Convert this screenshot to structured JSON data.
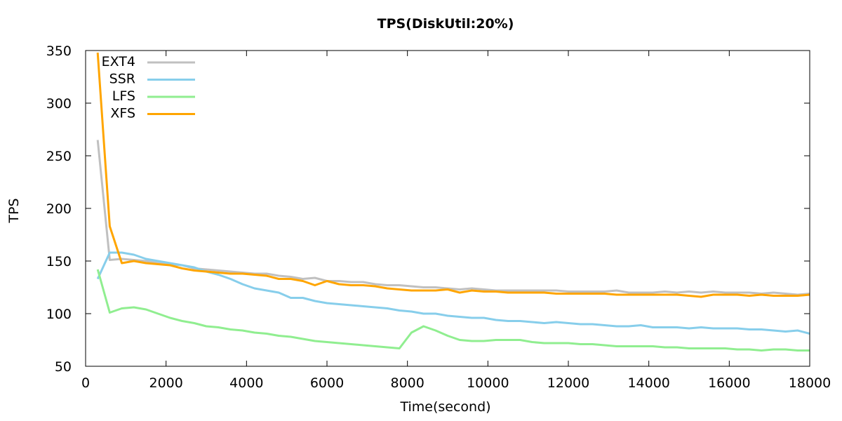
{
  "chart_data": {
    "type": "line",
    "title": "TPS(DiskUtil:20%)",
    "xlabel": "Time(second)",
    "ylabel": "TPS",
    "xlim": [
      0,
      18000
    ],
    "ylim": [
      50,
      350
    ],
    "x_ticks": [
      "0",
      "2000",
      "4000",
      "6000",
      "8000",
      "10000",
      "12000",
      "14000",
      "16000",
      "18000"
    ],
    "y_ticks": [
      "50",
      "100",
      "150",
      "200",
      "250",
      "300",
      "350"
    ],
    "grid": false,
    "legend_position": "top-left",
    "series": [
      {
        "name": "EXT4",
        "color": "#c0c0c0",
        "x": [
          300,
          600,
          900,
          1200,
          1500,
          1800,
          2100,
          2400,
          2700,
          3000,
          3300,
          3600,
          3900,
          4200,
          4500,
          4800,
          5100,
          5400,
          5700,
          6000,
          6300,
          6600,
          6900,
          7200,
          7500,
          7800,
          8100,
          8400,
          8700,
          9000,
          9300,
          9600,
          9900,
          10200,
          10500,
          10800,
          11100,
          11400,
          11700,
          12000,
          12300,
          12600,
          12900,
          13200,
          13500,
          13800,
          14100,
          14400,
          14700,
          15000,
          15300,
          15600,
          15900,
          16200,
          16500,
          16800,
          17100,
          17400,
          17700,
          18000
        ],
        "y": [
          265,
          151,
          152,
          151,
          150,
          148,
          147,
          146,
          143,
          142,
          141,
          140,
          139,
          138,
          138,
          136,
          135,
          133,
          134,
          131,
          131,
          130,
          130,
          128,
          127,
          127,
          126,
          125,
          125,
          124,
          123,
          124,
          123,
          122,
          122,
          122,
          122,
          122,
          122,
          121,
          121,
          121,
          121,
          122,
          120,
          120,
          120,
          121,
          120,
          121,
          120,
          121,
          120,
          120,
          120,
          119,
          120,
          119,
          118,
          119
        ]
      },
      {
        "name": "SSR",
        "color": "#87ceeb",
        "x": [
          300,
          600,
          900,
          1200,
          1500,
          1800,
          2100,
          2400,
          2700,
          3000,
          3300,
          3600,
          3900,
          4200,
          4500,
          4800,
          5100,
          5400,
          5700,
          6000,
          6300,
          6600,
          6900,
          7200,
          7500,
          7800,
          8100,
          8400,
          8700,
          9000,
          9300,
          9600,
          9900,
          10200,
          10500,
          10800,
          11100,
          11400,
          11700,
          12000,
          12300,
          12600,
          12900,
          13200,
          13500,
          13800,
          14100,
          14400,
          14700,
          15000,
          15300,
          15600,
          15900,
          16200,
          16500,
          16800,
          17100,
          17400,
          17700,
          18000
        ],
        "y": [
          133,
          158,
          158,
          156,
          152,
          150,
          148,
          146,
          144,
          140,
          137,
          133,
          128,
          124,
          122,
          120,
          115,
          115,
          112,
          110,
          109,
          108,
          107,
          106,
          105,
          103,
          102,
          100,
          100,
          98,
          97,
          96,
          96,
          94,
          93,
          93,
          92,
          91,
          92,
          91,
          90,
          90,
          89,
          88,
          88,
          89,
          87,
          87,
          87,
          86,
          87,
          86,
          86,
          86,
          85,
          85,
          84,
          83,
          84,
          81
        ]
      },
      {
        "name": "LFS",
        "color": "#90ee90",
        "x": [
          300,
          600,
          900,
          1200,
          1500,
          1800,
          2100,
          2400,
          2700,
          3000,
          3300,
          3600,
          3900,
          4200,
          4500,
          4800,
          5100,
          5400,
          5700,
          6000,
          6300,
          6600,
          6900,
          7200,
          7500,
          7800,
          8100,
          8400,
          8700,
          9000,
          9300,
          9600,
          9900,
          10200,
          10500,
          10800,
          11100,
          11400,
          11700,
          12000,
          12300,
          12600,
          12900,
          13200,
          13500,
          13800,
          14100,
          14400,
          14700,
          15000,
          15300,
          15600,
          15900,
          16200,
          16500,
          16800,
          17100,
          17400,
          17700,
          18000
        ],
        "y": [
          142,
          101,
          105,
          106,
          104,
          100,
          96,
          93,
          91,
          88,
          87,
          85,
          84,
          82,
          81,
          79,
          78,
          76,
          74,
          73,
          72,
          71,
          70,
          69,
          68,
          67,
          82,
          88,
          84,
          79,
          75,
          74,
          74,
          75,
          75,
          75,
          73,
          72,
          72,
          72,
          71,
          71,
          70,
          69,
          69,
          69,
          69,
          68,
          68,
          67,
          67,
          67,
          67,
          66,
          66,
          65,
          66,
          66,
          65,
          65
        ]
      },
      {
        "name": "XFS",
        "color": "#ffa500",
        "x": [
          300,
          600,
          900,
          1200,
          1500,
          1800,
          2100,
          2400,
          2700,
          3000,
          3300,
          3600,
          3900,
          4200,
          4500,
          4800,
          5100,
          5400,
          5700,
          6000,
          6300,
          6600,
          6900,
          7200,
          7500,
          7800,
          8100,
          8400,
          8700,
          9000,
          9300,
          9600,
          9900,
          10200,
          10500,
          10800,
          11100,
          11400,
          11700,
          12000,
          12300,
          12600,
          12900,
          13200,
          13500,
          13800,
          14100,
          14400,
          14700,
          15000,
          15300,
          15600,
          15900,
          16200,
          16500,
          16800,
          17100,
          17400,
          17700,
          18000
        ],
        "y": [
          348,
          183,
          148,
          150,
          148,
          147,
          146,
          143,
          141,
          140,
          139,
          138,
          138,
          137,
          136,
          133,
          133,
          131,
          127,
          131,
          128,
          127,
          127,
          126,
          124,
          123,
          122,
          122,
          122,
          123,
          120,
          122,
          121,
          121,
          120,
          120,
          120,
          120,
          119,
          119,
          119,
          119,
          119,
          118,
          118,
          118,
          118,
          118,
          118,
          117,
          116,
          118,
          118,
          118,
          117,
          118,
          117,
          117,
          117,
          118
        ]
      }
    ]
  }
}
